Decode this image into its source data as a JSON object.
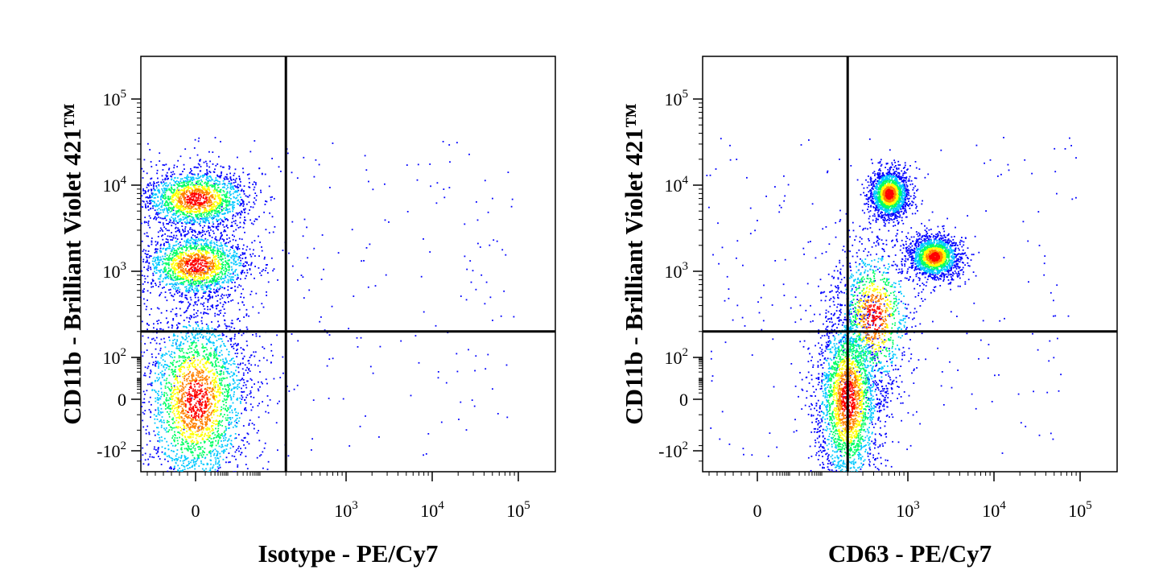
{
  "chart_data": [
    {
      "type": "scatter",
      "subtype": "flow-cytometry-density-dot-plot",
      "xlabel": "Isotype - PE/Cy7",
      "ylabel": "CD11b - Brilliant Violet 421™",
      "xscale": "biexponential",
      "yscale": "biexponential",
      "x_ticks": [
        {
          "base": "0",
          "exp": ""
        },
        {
          "base": "10",
          "exp": "3"
        },
        {
          "base": "10",
          "exp": "4"
        },
        {
          "base": "10",
          "exp": "5"
        }
      ],
      "y_ticks": [
        {
          "base": "-10",
          "exp": "2"
        },
        {
          "base": "0",
          "exp": ""
        },
        {
          "base": "10",
          "exp": "2"
        },
        {
          "base": "10",
          "exp": "3"
        },
        {
          "base": "10",
          "exp": "4"
        },
        {
          "base": "10",
          "exp": "5"
        }
      ],
      "xlim": [
        -300,
        250000
      ],
      "ylim": [
        -300,
        250000
      ],
      "quadrant_gate": {
        "x": 200,
        "y": 200
      },
      "color_scale": [
        "#0000ff",
        "#00c8ff",
        "#00ff64",
        "#ffff00",
        "#ff8000",
        "#ff0000"
      ],
      "populations": [
        {
          "x": 0,
          "y": 7000,
          "spread_x": 1.0,
          "spread_y": 0.32,
          "density": "high"
        },
        {
          "x": 0,
          "y": 1200,
          "spread_x": 1.0,
          "spread_y": 0.35,
          "density": "high"
        },
        {
          "x": 0,
          "y": 0,
          "spread_x": 1.0,
          "spread_y": 1.0,
          "density": "very high"
        }
      ]
    },
    {
      "type": "scatter",
      "subtype": "flow-cytometry-density-dot-plot",
      "xlabel": "CD63 - PE/Cy7",
      "ylabel": "CD11b - Brilliant Violet 421™",
      "xscale": "biexponential",
      "yscale": "biexponential",
      "x_ticks": [
        {
          "base": "0",
          "exp": ""
        },
        {
          "base": "10",
          "exp": "3"
        },
        {
          "base": "10",
          "exp": "4"
        },
        {
          "base": "10",
          "exp": "5"
        }
      ],
      "y_ticks": [
        {
          "base": "-10",
          "exp": "2"
        },
        {
          "base": "0",
          "exp": ""
        },
        {
          "base": "10",
          "exp": "2"
        },
        {
          "base": "10",
          "exp": "3"
        },
        {
          "base": "10",
          "exp": "4"
        },
        {
          "base": "10",
          "exp": "5"
        }
      ],
      "xlim": [
        -300,
        250000
      ],
      "ylim": [
        -300,
        250000
      ],
      "quadrant_gate": {
        "x": 200,
        "y": 200
      },
      "color_scale": [
        "#0000ff",
        "#00c8ff",
        "#00ff64",
        "#ffff00",
        "#ff8000",
        "#ff0000"
      ],
      "populations": [
        {
          "x": 600,
          "y": 8000,
          "spread_x": 0.35,
          "spread_y": 0.25,
          "density": "high"
        },
        {
          "x": 2000,
          "y": 1500,
          "spread_x": 0.45,
          "spread_y": 0.22,
          "density": "high"
        },
        {
          "x": 200,
          "y": 0,
          "spread_x": 0.6,
          "spread_y": 1.0,
          "density": "very high"
        },
        {
          "x": 400,
          "y": 300,
          "spread_x": 0.7,
          "spread_y": 0.8,
          "density": "medium"
        }
      ]
    }
  ]
}
